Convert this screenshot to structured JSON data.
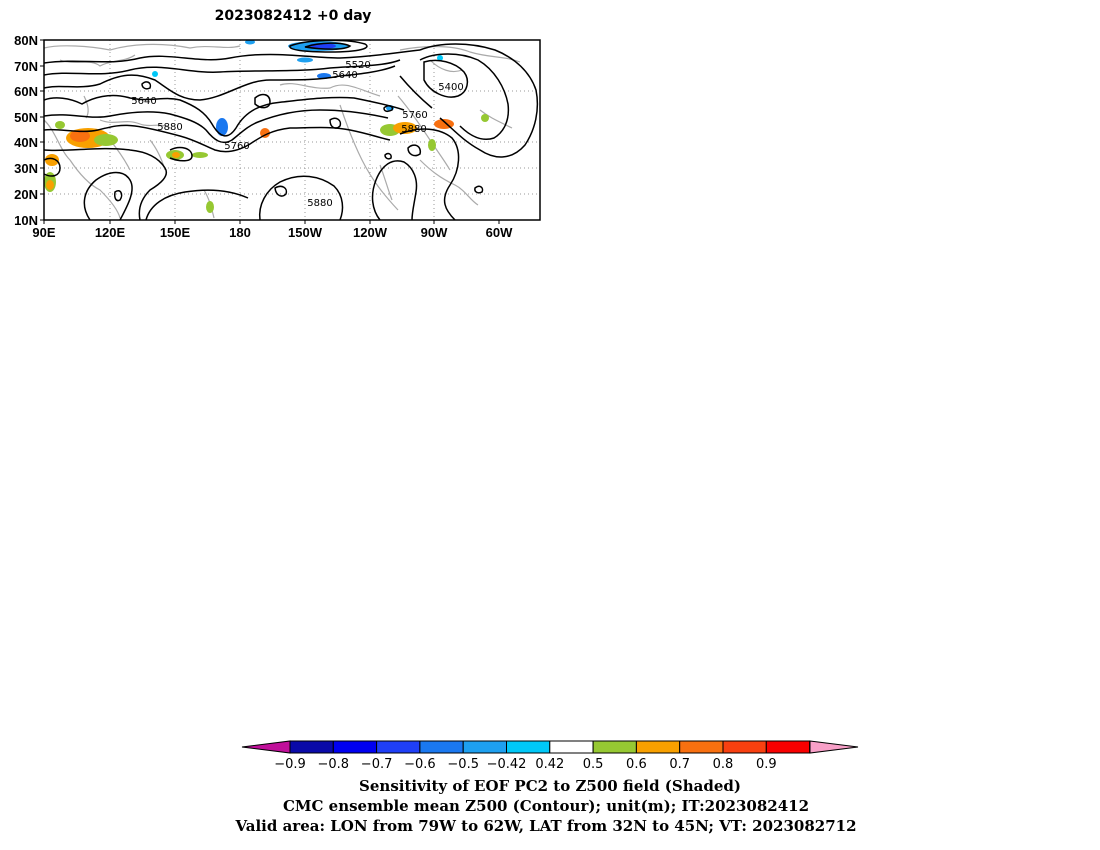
{
  "title": "2023082412  +0 day",
  "axes": {
    "y_ticks": [
      "80N",
      "70N",
      "60N",
      "50N",
      "40N",
      "30N",
      "20N",
      "10N"
    ],
    "x_ticks": [
      "90E",
      "120E",
      "150E",
      "180",
      "150W",
      "120W",
      "90W",
      "60W"
    ]
  },
  "contour_labels": [
    "5520",
    "5640",
    "5400",
    "5640",
    "5880",
    "5760",
    "5760",
    "5880",
    "5880"
  ],
  "colorbar": {
    "labels": [
      "-0.9",
      "-0.8",
      "-0.7",
      "-0.6",
      "-0.5",
      "-0.42",
      "0.42",
      "0.5",
      "0.6",
      "0.7",
      "0.8",
      "0.9"
    ],
    "colors": [
      "#0a0aa8",
      "#0000f0",
      "#1f3ff7",
      "#1a78f0",
      "#1ea0f0",
      "#00c8f8",
      "#ffffff",
      "#96c832",
      "#f8a000",
      "#f87010",
      "#f84010",
      "#f80000"
    ],
    "low_color": "#c0109a",
    "high_color": "#f8a0c8"
  },
  "captions": {
    "line1": "Sensitivity of EOF PC2 to Z500 field (Shaded)",
    "line2": "CMC ensemble mean Z500 (Contour); unit(m); IT:2023082412",
    "line3": "Valid area: LON from 79W to 62W, LAT from 32N to 45N; VT: 2023082712"
  }
}
